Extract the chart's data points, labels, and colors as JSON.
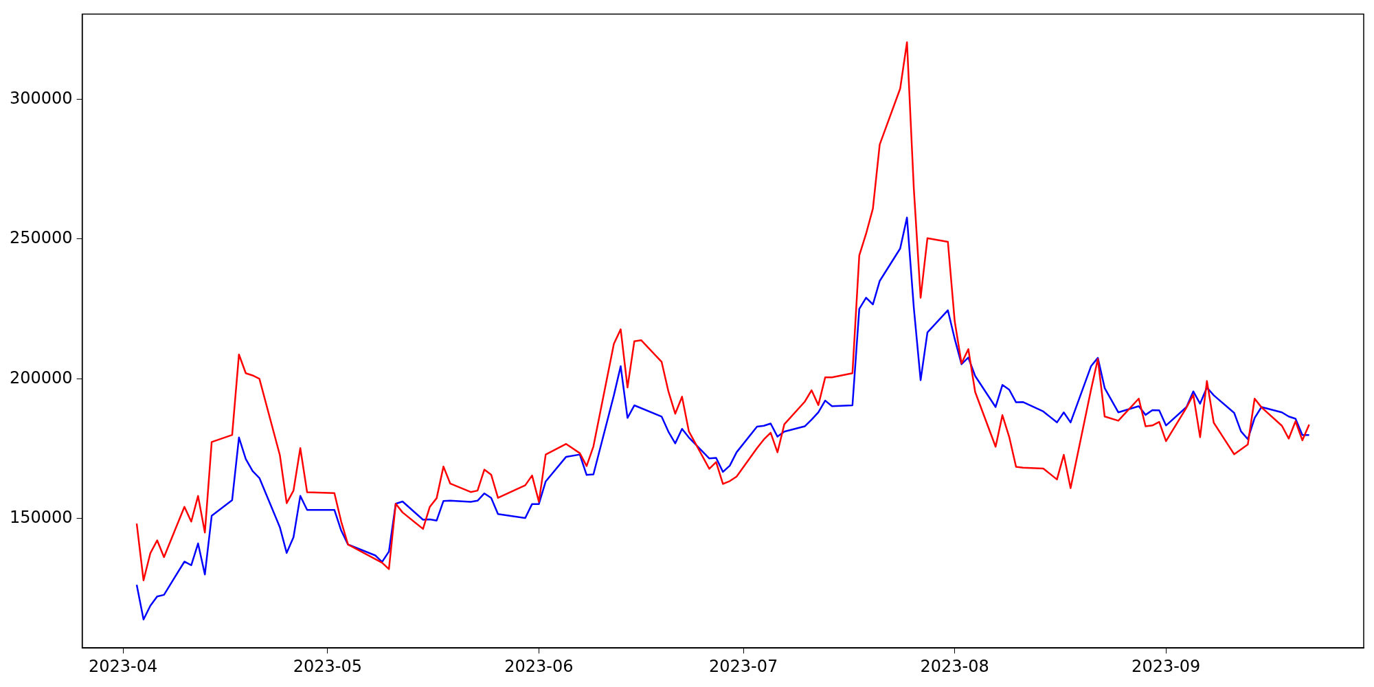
{
  "chart_data": {
    "type": "line",
    "xlim": [
      "2023-03-26",
      "2023-09-30"
    ],
    "xticks": [
      "2023-04",
      "2023-05",
      "2023-06",
      "2023-07",
      "2023-08",
      "2023-09"
    ],
    "ylim": [
      103700,
      330500
    ],
    "yticks": [
      150000,
      200000,
      250000,
      300000
    ],
    "marker": "none",
    "line_style": "solid",
    "series": [
      {
        "color": "#ff0000",
        "x": [
          "2023-04-03",
          "2023-04-04",
          "2023-04-05",
          "2023-04-06",
          "2023-04-07",
          "2023-04-10",
          "2023-04-11",
          "2023-04-12",
          "2023-04-13",
          "2023-04-14",
          "2023-04-17",
          "2023-04-18",
          "2023-04-19",
          "2023-04-20",
          "2023-04-21",
          "2023-04-24",
          "2023-04-25",
          "2023-04-26",
          "2023-04-27",
          "2023-04-28",
          "2023-05-02",
          "2023-05-03",
          "2023-05-04",
          "2023-05-09",
          "2023-05-10",
          "2023-05-11",
          "2023-05-12",
          "2023-05-15",
          "2023-05-16",
          "2023-05-17",
          "2023-05-18",
          "2023-05-19",
          "2023-05-22",
          "2023-05-23",
          "2023-05-24",
          "2023-05-25",
          "2023-05-26",
          "2023-05-30",
          "2023-05-31",
          "2023-06-01",
          "2023-06-02",
          "2023-06-05",
          "2023-06-07",
          "2023-06-08",
          "2023-06-09",
          "2023-06-12",
          "2023-06-13",
          "2023-06-14",
          "2023-06-15",
          "2023-06-16",
          "2023-06-19",
          "2023-06-20",
          "2023-06-21",
          "2023-06-22",
          "2023-06-23",
          "2023-06-26",
          "2023-06-27",
          "2023-06-28",
          "2023-06-29",
          "2023-06-30",
          "2023-07-03",
          "2023-07-04",
          "2023-07-05",
          "2023-07-06",
          "2023-07-07",
          "2023-07-10",
          "2023-07-11",
          "2023-07-12",
          "2023-07-13",
          "2023-07-14",
          "2023-07-17",
          "2023-07-18",
          "2023-07-19",
          "2023-07-20",
          "2023-07-21",
          "2023-07-24",
          "2023-07-25",
          "2023-07-26",
          "2023-07-27",
          "2023-07-28",
          "2023-07-31",
          "2023-08-01",
          "2023-08-02",
          "2023-08-03",
          "2023-08-04",
          "2023-08-07",
          "2023-08-08",
          "2023-08-09",
          "2023-08-10",
          "2023-08-11",
          "2023-08-14",
          "2023-08-16",
          "2023-08-17",
          "2023-08-18",
          "2023-08-21",
          "2023-08-22",
          "2023-08-23",
          "2023-08-25",
          "2023-08-28",
          "2023-08-29",
          "2023-08-30",
          "2023-08-31",
          "2023-09-01",
          "2023-09-04",
          "2023-09-05",
          "2023-09-06",
          "2023-09-07",
          "2023-09-08",
          "2023-09-11",
          "2023-09-13",
          "2023-09-14",
          "2023-09-15",
          "2023-09-18",
          "2023-09-19",
          "2023-09-20",
          "2023-09-21",
          "2023-09-22"
        ],
        "values": [
          148200,
          127900,
          137600,
          142200,
          136200,
          154200,
          148900,
          158100,
          145000,
          177400,
          179900,
          208700,
          202000,
          201200,
          200000,
          172700,
          155500,
          160000,
          175200,
          159400,
          159100,
          148900,
          140700,
          134200,
          131900,
          155300,
          152200,
          146300,
          154200,
          157300,
          168600,
          162500,
          159500,
          160000,
          167500,
          165700,
          157400,
          161900,
          165400,
          156000,
          172900,
          176700,
          173400,
          168800,
          175800,
          212500,
          217700,
          196900,
          213400,
          213800,
          206100,
          195500,
          187500,
          193600,
          181200,
          167800,
          170200,
          162400,
          163400,
          165000,
          175200,
          178300,
          180700,
          173700,
          183700,
          191800,
          195900,
          190600,
          200500,
          200500,
          202000,
          244100,
          251900,
          260900,
          283800,
          303800,
          320400,
          268200,
          229000,
          250300,
          249000,
          220600,
          205500,
          210600,
          195300,
          175700,
          187000,
          179200,
          168500,
          168200,
          167900,
          164000,
          172800,
          160900,
          196100,
          207100,
          186500,
          185000,
          192900,
          183000,
          183300,
          184600,
          177700,
          189700,
          194300,
          179100,
          199200,
          184300,
          173000,
          176500,
          192900,
          189800,
          183200,
          178600,
          184800,
          178000,
          183600
        ]
      },
      {
        "color": "#0000ff",
        "x": [
          "2023-04-03",
          "2023-04-04",
          "2023-04-05",
          "2023-04-06",
          "2023-04-07",
          "2023-04-10",
          "2023-04-11",
          "2023-04-12",
          "2023-04-13",
          "2023-04-14",
          "2023-04-17",
          "2023-04-18",
          "2023-04-19",
          "2023-04-20",
          "2023-04-21",
          "2023-04-24",
          "2023-04-25",
          "2023-04-26",
          "2023-04-27",
          "2023-04-28",
          "2023-05-02",
          "2023-05-03",
          "2023-05-04",
          "2023-05-08",
          "2023-05-09",
          "2023-05-10",
          "2023-05-11",
          "2023-05-12",
          "2023-05-15",
          "2023-05-16",
          "2023-05-17",
          "2023-05-18",
          "2023-05-19",
          "2023-05-22",
          "2023-05-23",
          "2023-05-24",
          "2023-05-25",
          "2023-05-26",
          "2023-05-30",
          "2023-05-31",
          "2023-06-01",
          "2023-06-02",
          "2023-06-05",
          "2023-06-07",
          "2023-06-08",
          "2023-06-09",
          "2023-06-12",
          "2023-06-13",
          "2023-06-14",
          "2023-06-15",
          "2023-06-19",
          "2023-06-20",
          "2023-06-21",
          "2023-06-22",
          "2023-06-23",
          "2023-06-26",
          "2023-06-27",
          "2023-06-28",
          "2023-06-29",
          "2023-06-30",
          "2023-07-03",
          "2023-07-04",
          "2023-07-05",
          "2023-07-06",
          "2023-07-07",
          "2023-07-10",
          "2023-07-11",
          "2023-07-12",
          "2023-07-13",
          "2023-07-14",
          "2023-07-17",
          "2023-07-18",
          "2023-07-19",
          "2023-07-20",
          "2023-07-21",
          "2023-07-24",
          "2023-07-25",
          "2023-07-26",
          "2023-07-27",
          "2023-07-28",
          "2023-07-31",
          "2023-08-01",
          "2023-08-02",
          "2023-08-03",
          "2023-08-04",
          "2023-08-07",
          "2023-08-08",
          "2023-08-09",
          "2023-08-10",
          "2023-08-11",
          "2023-08-14",
          "2023-08-16",
          "2023-08-17",
          "2023-08-18",
          "2023-08-21",
          "2023-08-22",
          "2023-08-23",
          "2023-08-25",
          "2023-08-28",
          "2023-08-29",
          "2023-08-30",
          "2023-08-31",
          "2023-09-01",
          "2023-09-04",
          "2023-09-05",
          "2023-09-06",
          "2023-09-07",
          "2023-09-08",
          "2023-09-11",
          "2023-09-12",
          "2023-09-13",
          "2023-09-14",
          "2023-09-15",
          "2023-09-18",
          "2023-09-19",
          "2023-09-20",
          "2023-09-21",
          "2023-09-22"
        ],
        "values": [
          126300,
          113900,
          118800,
          122100,
          122700,
          134600,
          133300,
          141100,
          130000,
          151000,
          156600,
          179000,
          171300,
          167000,
          164500,
          146900,
          137700,
          143300,
          158100,
          153100,
          153100,
          145700,
          140700,
          136800,
          134500,
          138200,
          155300,
          156100,
          149600,
          149700,
          149300,
          156300,
          156400,
          156000,
          156400,
          159000,
          157400,
          151600,
          150200,
          155200,
          155200,
          163300,
          172100,
          172900,
          165600,
          165800,
          194100,
          204500,
          186000,
          190500,
          186500,
          181100,
          176900,
          182100,
          179000,
          171500,
          171700,
          166700,
          168900,
          173700,
          182900,
          183200,
          184000,
          179300,
          181100,
          183000,
          185400,
          188000,
          192200,
          190200,
          190500,
          225000,
          229000,
          226600,
          235000,
          246600,
          257700,
          225500,
          199500,
          216600,
          224500,
          214300,
          205200,
          207600,
          201000,
          189900,
          197800,
          196100,
          191600,
          191700,
          188300,
          184400,
          188000,
          184400,
          204500,
          207500,
          196700,
          188000,
          190200,
          187100,
          188800,
          188700,
          183300,
          189900,
          195500,
          191100,
          196900,
          194100,
          187800,
          181200,
          178400,
          186000,
          189900,
          188000,
          186500,
          185700,
          179900,
          179900
        ]
      }
    ]
  }
}
